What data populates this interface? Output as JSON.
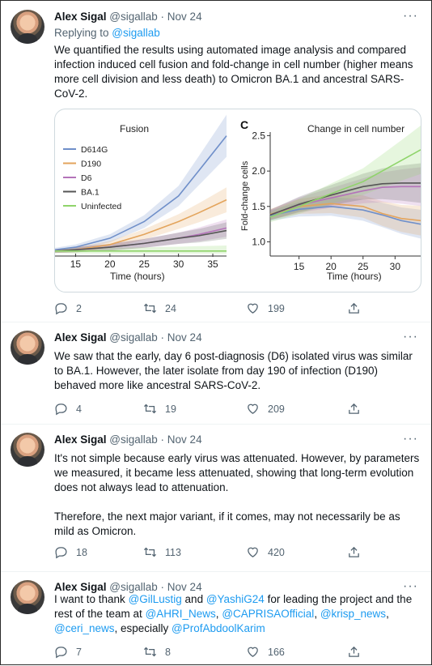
{
  "tweets": [
    {
      "author": "Alex Sigal",
      "handle": "@sigallab",
      "date": "Nov 24",
      "replying_prefix": "Replying to ",
      "replying_to": "@sigallab",
      "text_lines": [
        "We quantified the results using automated image analysis and compared",
        "infection induced cell fusion and fold-change in cell number (higher means",
        "more cell division and less death) to Omicron BA.1 and ancestral SARS-",
        "CoV-2."
      ],
      "replies": "2",
      "retweets": "24",
      "likes": "199"
    },
    {
      "author": "Alex Sigal",
      "handle": "@sigallab",
      "date": "Nov 24",
      "text_lines": [
        "We saw that the early, day 6 post-diagnosis (D6) isolated virus was similar",
        "to BA.1. However, the later isolate from day 190 of infection (D190)",
        "behaved more like ancestral SARS-CoV-2."
      ],
      "replies": "4",
      "retweets": "19",
      "likes": "209"
    },
    {
      "author": "Alex Sigal",
      "handle": "@sigallab",
      "date": "Nov 24",
      "text_lines": [
        "It's not simple because early virus was attenuated. However, by parameters",
        "we measured, it became less attenuated, showing that long-term evolution",
        "does not always lead to attenuation.",
        "",
        "Therefore, the next major variant, if it comes, may not necessarily be as",
        "mild as Omicron."
      ],
      "replies": "18",
      "retweets": "113",
      "likes": "420"
    },
    {
      "author": "Alex Sigal",
      "handle": "@sigallab",
      "date": "Nov 24",
      "t4": {
        "l1a": "I want to thank ",
        "m1": "@GilLustig",
        "l1b": " and ",
        "m2": "@YashiG24",
        "l1c": " for leading the project and the",
        "l2a": "rest of the team at ",
        "m3": "@AHRI_News",
        "c1": ", ",
        "m4": "@CAPRISAOfficial",
        "c2": ", ",
        "m5": "@krisp_news",
        "c3": ",",
        "m6": "@ceri_news",
        "l3a": ", especially ",
        "m7": "@ProfAbdoolKarim"
      },
      "replies": "7",
      "retweets": "8",
      "likes": "166"
    }
  ],
  "icons": {
    "more": "more-dots-icon",
    "reply": "reply-icon",
    "retweet": "retweet-icon",
    "like": "heart-icon",
    "share": "share-icon"
  },
  "colors": {
    "link": "#1d9bf0",
    "muted": "#536471",
    "d614g": "#6f8fc9",
    "d190": "#e3a45c",
    "d6": "#b473b9",
    "ba1": "#555555",
    "uninfected": "#8fd46a"
  },
  "chart_data": [
    {
      "type": "line",
      "title": "Fusion",
      "xlabel": "Time (hours)",
      "ylabel": "",
      "xlim": [
        12,
        37
      ],
      "ylim": [
        0,
        1
      ],
      "xticks": [
        "15",
        "20",
        "25",
        "30",
        "35"
      ],
      "legend": [
        "D614G",
        "D190",
        "D6",
        "BA.1",
        "Uninfected"
      ],
      "legend_position": "top-left",
      "series": [
        {
          "name": "D614G",
          "x": [
            12,
            15,
            20,
            25,
            30,
            33,
            37
          ],
          "y": [
            0.03,
            0.05,
            0.12,
            0.25,
            0.45,
            0.65,
            0.92
          ]
        },
        {
          "name": "D190",
          "x": [
            12,
            15,
            20,
            25,
            30,
            33,
            37
          ],
          "y": [
            0.02,
            0.03,
            0.07,
            0.15,
            0.25,
            0.32,
            0.42
          ]
        },
        {
          "name": "D6",
          "x": [
            12,
            15,
            20,
            25,
            30,
            33,
            37
          ],
          "y": [
            0.02,
            0.03,
            0.05,
            0.08,
            0.12,
            0.15,
            0.2
          ]
        },
        {
          "name": "BA.1",
          "x": [
            12,
            15,
            20,
            25,
            30,
            33,
            37
          ],
          "y": [
            0.02,
            0.03,
            0.05,
            0.08,
            0.12,
            0.14,
            0.18
          ]
        },
        {
          "name": "Uninfected",
          "x": [
            12,
            15,
            20,
            25,
            30,
            33,
            37
          ],
          "y": [
            0.02,
            0.02,
            0.02,
            0.02,
            0.02,
            0.02,
            0.02
          ]
        }
      ]
    },
    {
      "type": "line",
      "panel_label": "C",
      "title": "Change in cell number",
      "xlabel": "Time (hours)",
      "ylabel": "Fold-change cells",
      "xlim": [
        10.5,
        34
      ],
      "ylim": [
        0.8,
        2.55
      ],
      "xticks": [
        "15",
        "20",
        "25",
        "30"
      ],
      "yticks": [
        "1.0",
        "1.5",
        "2.0",
        "2.5"
      ],
      "series": [
        {
          "name": "D614G",
          "x": [
            10.5,
            15,
            20,
            25,
            28,
            31,
            34
          ],
          "y": [
            1.37,
            1.46,
            1.5,
            1.45,
            1.38,
            1.3,
            1.25
          ]
        },
        {
          "name": "D190",
          "x": [
            10.5,
            15,
            20,
            25,
            28,
            31,
            34
          ],
          "y": [
            1.39,
            1.5,
            1.54,
            1.5,
            1.4,
            1.33,
            1.3
          ]
        },
        {
          "name": "D6",
          "x": [
            10.5,
            15,
            20,
            25,
            28,
            31,
            34
          ],
          "y": [
            1.38,
            1.52,
            1.62,
            1.72,
            1.77,
            1.78,
            1.78
          ]
        },
        {
          "name": "BA.1",
          "x": [
            10.5,
            15,
            20,
            25,
            28,
            31,
            34
          ],
          "y": [
            1.38,
            1.53,
            1.66,
            1.78,
            1.82,
            1.83,
            1.83
          ]
        },
        {
          "name": "Uninfected",
          "x": [
            10.5,
            15,
            20,
            25,
            28,
            31,
            34
          ],
          "y": [
            1.35,
            1.5,
            1.68,
            1.85,
            2.0,
            2.15,
            2.3
          ]
        }
      ]
    }
  ]
}
